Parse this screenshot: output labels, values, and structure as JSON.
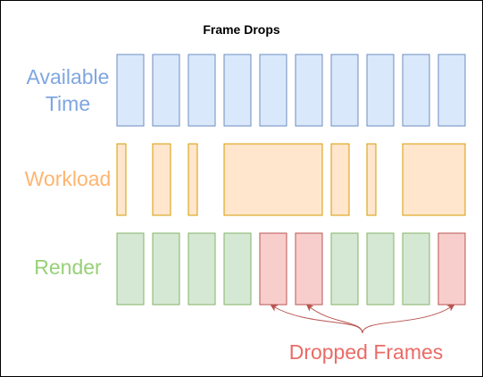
{
  "title": "Frame Drops",
  "rows": {
    "available": {
      "label_line1": "Available",
      "label_line2": "Time",
      "color": "#7EA6E0",
      "fill": "#DAE8FC",
      "stroke": "#6C8EBF"
    },
    "workload": {
      "label": "Workload",
      "color": "#FFB570",
      "fill": "#FFE6CC",
      "stroke": "#D79B00"
    },
    "render": {
      "label": "Render",
      "color": "#97D077",
      "fill": "#D5E8D4",
      "stroke": "#82B366"
    }
  },
  "dropped": {
    "label": "Dropped Frames",
    "color": "#EA6B66",
    "fill": "#F8CECC",
    "stroke": "#B85450",
    "arrow_color": "#B85450"
  },
  "frames": {
    "available_count": 10,
    "render_states": [
      "ok",
      "ok",
      "ok",
      "ok",
      "dropped",
      "dropped",
      "ok",
      "ok",
      "ok",
      "dropped"
    ],
    "dropped_indices": [
      4,
      5,
      9
    ]
  }
}
